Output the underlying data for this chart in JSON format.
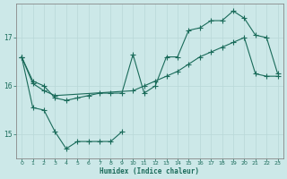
{
  "xlabel": "Humidex (Indice chaleur)",
  "ylabel": "",
  "bg_color": "#cce8e8",
  "line_color": "#1a6b5a",
  "grid_color": "#b8d8d8",
  "axis_color": "#888888",
  "xlim": [
    -0.5,
    23.5
  ],
  "ylim": [
    14.5,
    17.7
  ],
  "yticks": [
    15,
    16,
    17
  ],
  "xticks": [
    0,
    1,
    2,
    3,
    4,
    5,
    6,
    7,
    8,
    9,
    10,
    11,
    12,
    13,
    14,
    15,
    16,
    17,
    18,
    19,
    20,
    21,
    22,
    23
  ],
  "line1_x": [
    0,
    1,
    2,
    3,
    4,
    5,
    6,
    7,
    8,
    9,
    10,
    11,
    12,
    13,
    14,
    15,
    16,
    17,
    18,
    19,
    20,
    21,
    22,
    23
  ],
  "line1_y": [
    16.6,
    16.1,
    16.0,
    15.75,
    15.7,
    15.75,
    15.8,
    15.85,
    15.85,
    15.85,
    16.65,
    15.85,
    16.0,
    16.6,
    16.6,
    17.15,
    17.2,
    17.35,
    17.35,
    17.55,
    17.4,
    17.05,
    17.0,
    16.25
  ],
  "line2_x": [
    0,
    1,
    2,
    3,
    10,
    11,
    12,
    13,
    14,
    15,
    16,
    17,
    18,
    19,
    20,
    21,
    22,
    23
  ],
  "line2_y": [
    16.6,
    16.05,
    15.9,
    15.8,
    15.9,
    16.0,
    16.1,
    16.2,
    16.3,
    16.45,
    16.6,
    16.7,
    16.8,
    16.9,
    17.0,
    16.25,
    16.2,
    16.2
  ],
  "line3_x": [
    0,
    1,
    2,
    3,
    4,
    5,
    6,
    7,
    8,
    9
  ],
  "line3_y": [
    16.6,
    15.55,
    15.5,
    15.05,
    14.7,
    14.85,
    14.85,
    14.85,
    14.85,
    15.05
  ]
}
